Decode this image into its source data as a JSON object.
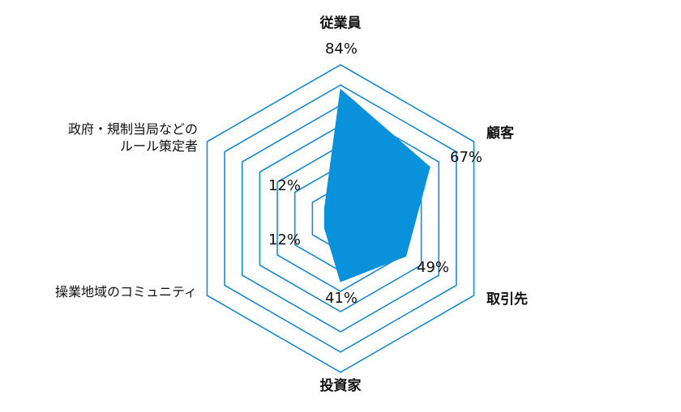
{
  "colors": {
    "grid": "#1a8ad4",
    "fill": "#0a91dc"
  },
  "chart_data": {
    "type": "radar",
    "title": "",
    "axes": [
      {
        "label": "従業員",
        "lines": [
          "従業員"
        ],
        "value": 84,
        "value_label": "84%"
      },
      {
        "label": "顧客",
        "lines": [
          "顧客"
        ],
        "value": 67,
        "value_label": "67%"
      },
      {
        "label": "取引先",
        "lines": [
          "取引先"
        ],
        "value": 49,
        "value_label": "49%"
      },
      {
        "label": "投資家",
        "lines": [
          "投資家"
        ],
        "value": 41,
        "value_label": "41%"
      },
      {
        "label": "操業地域のコミュニティ",
        "lines": [
          "操業地域のコミュニティ"
        ],
        "value": 12,
        "value_label": "12%"
      },
      {
        "label": "政府・規制当局などのルール策定者",
        "lines": [
          "政府・規制当局などの",
          "ルール策定者"
        ],
        "value": 12,
        "value_label": "12%"
      }
    ],
    "rings": 5,
    "range": [
      0,
      100
    ],
    "unit": "%"
  }
}
